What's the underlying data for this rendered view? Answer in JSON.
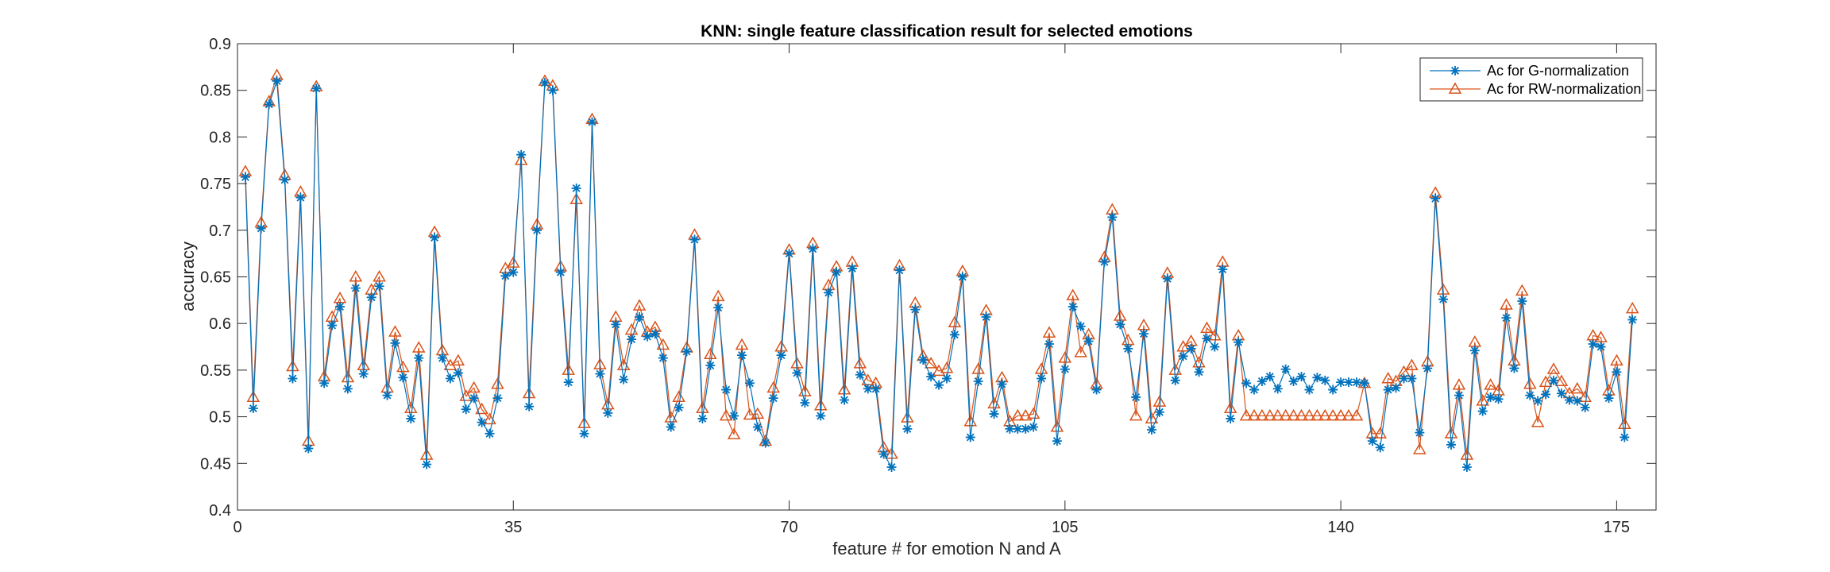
{
  "chart_data": {
    "type": "line",
    "title": "KNN: single feature classification result for selected emotions",
    "xlabel": "feature # for emotion N and A",
    "ylabel": "accuracy",
    "xlim": [
      0,
      180
    ],
    "ylim": [
      0.4,
      0.9
    ],
    "xticks": [
      0,
      35,
      70,
      105,
      140,
      175
    ],
    "yticks": [
      0.4,
      0.45,
      0.5,
      0.55,
      0.6,
      0.65,
      0.7,
      0.75,
      0.8,
      0.85,
      0.9
    ],
    "ytick_labels": [
      "0.4",
      "0.45",
      "0.5",
      "0.55",
      "0.6",
      "0.65",
      "0.7",
      "0.75",
      "0.8",
      "0.85",
      "0.9"
    ],
    "legend_position": "top-right",
    "grid": false,
    "x_start": 1,
    "series": [
      {
        "name": "Ac for G-normalization",
        "color": "#0072BD",
        "marker": "asterisk",
        "values": [
          0.757,
          0.509,
          0.702,
          0.835,
          0.86,
          0.754,
          0.541,
          0.735,
          0.466,
          0.852,
          0.536,
          0.598,
          0.618,
          0.53,
          0.638,
          0.546,
          0.628,
          0.64,
          0.523,
          0.579,
          0.542,
          0.498,
          0.563,
          0.449,
          0.692,
          0.563,
          0.541,
          0.547,
          0.508,
          0.52,
          0.494,
          0.482,
          0.52,
          0.651,
          0.655,
          0.781,
          0.511,
          0.7,
          0.858,
          0.85,
          0.655,
          0.537,
          0.745,
          0.482,
          0.816,
          0.546,
          0.504,
          0.599,
          0.54,
          0.583,
          0.607,
          0.586,
          0.589,
          0.563,
          0.489,
          0.51,
          0.57,
          0.69,
          0.498,
          0.555,
          0.617,
          0.529,
          0.501,
          0.566,
          0.536,
          0.489,
          0.472,
          0.52,
          0.566,
          0.675,
          0.547,
          0.515,
          0.68,
          0.501,
          0.633,
          0.655,
          0.518,
          0.659,
          0.545,
          0.53,
          0.53,
          0.46,
          0.446,
          0.657,
          0.487,
          0.615,
          0.561,
          0.543,
          0.534,
          0.541,
          0.588,
          0.65,
          0.478,
          0.538,
          0.607,
          0.503,
          0.535,
          0.487,
          0.487,
          0.487,
          0.489,
          0.541,
          0.578,
          0.474,
          0.551,
          0.618,
          0.597,
          0.581,
          0.529,
          0.666,
          0.714,
          0.599,
          0.573,
          0.521,
          0.589,
          0.486,
          0.505,
          0.648,
          0.539,
          0.565,
          0.573,
          0.548,
          0.584,
          0.575,
          0.658,
          0.498,
          0.58,
          0.536,
          0.529,
          0.538,
          0.543,
          0.53,
          0.551,
          0.538,
          0.543,
          0.529,
          0.542,
          0.539,
          0.529,
          0.537,
          0.537,
          0.537,
          0.536,
          0.474,
          0.467,
          0.529,
          0.531,
          0.541,
          0.541,
          0.483,
          0.552,
          0.734,
          0.626,
          0.47,
          0.523,
          0.446,
          0.571,
          0.506,
          0.521,
          0.519,
          0.606,
          0.552,
          0.624,
          0.523,
          0.517,
          0.524,
          0.539,
          0.525,
          0.518,
          0.517,
          0.51,
          0.578,
          0.575,
          0.52,
          0.548,
          0.478,
          0.604
        ]
      },
      {
        "name": "Ac for RW-normalization",
        "color": "#D95319",
        "marker": "triangle",
        "values": [
          0.763,
          0.521,
          0.708,
          0.838,
          0.866,
          0.759,
          0.554,
          0.741,
          0.474,
          0.854,
          0.543,
          0.607,
          0.627,
          0.542,
          0.65,
          0.555,
          0.636,
          0.65,
          0.531,
          0.591,
          0.553,
          0.509,
          0.574,
          0.459,
          0.698,
          0.571,
          0.555,
          0.56,
          0.522,
          0.531,
          0.508,
          0.497,
          0.535,
          0.659,
          0.665,
          0.775,
          0.525,
          0.706,
          0.86,
          0.855,
          0.661,
          0.55,
          0.733,
          0.493,
          0.819,
          0.556,
          0.513,
          0.607,
          0.555,
          0.593,
          0.619,
          0.591,
          0.596,
          0.577,
          0.499,
          0.521,
          0.574,
          0.695,
          0.509,
          0.567,
          0.629,
          0.501,
          0.481,
          0.577,
          0.502,
          0.503,
          0.474,
          0.531,
          0.575,
          0.679,
          0.557,
          0.527,
          0.686,
          0.512,
          0.641,
          0.661,
          0.529,
          0.666,
          0.557,
          0.539,
          0.536,
          0.467,
          0.46,
          0.662,
          0.499,
          0.622,
          0.565,
          0.557,
          0.549,
          0.552,
          0.601,
          0.656,
          0.495,
          0.551,
          0.614,
          0.514,
          0.542,
          0.495,
          0.501,
          0.501,
          0.503,
          0.551,
          0.59,
          0.489,
          0.563,
          0.63,
          0.569,
          0.588,
          0.535,
          0.671,
          0.722,
          0.608,
          0.582,
          0.501,
          0.598,
          0.498,
          0.516,
          0.654,
          0.55,
          0.575,
          0.581,
          0.558,
          0.595,
          0.587,
          0.666,
          0.509,
          0.587,
          0.501,
          0.501,
          0.501,
          0.501,
          0.501,
          0.501,
          0.501,
          0.501,
          0.501,
          0.501,
          0.501,
          0.501,
          0.501,
          0.501,
          0.501,
          0.536,
          0.482,
          0.482,
          0.541,
          0.538,
          0.548,
          0.555,
          0.465,
          0.559,
          0.74,
          0.636,
          0.482,
          0.534,
          0.459,
          0.58,
          0.517,
          0.534,
          0.528,
          0.62,
          0.56,
          0.635,
          0.535,
          0.494,
          0.537,
          0.551,
          0.538,
          0.525,
          0.53,
          0.521,
          0.587,
          0.585,
          0.528,
          0.56,
          0.492,
          0.616
        ]
      }
    ]
  }
}
